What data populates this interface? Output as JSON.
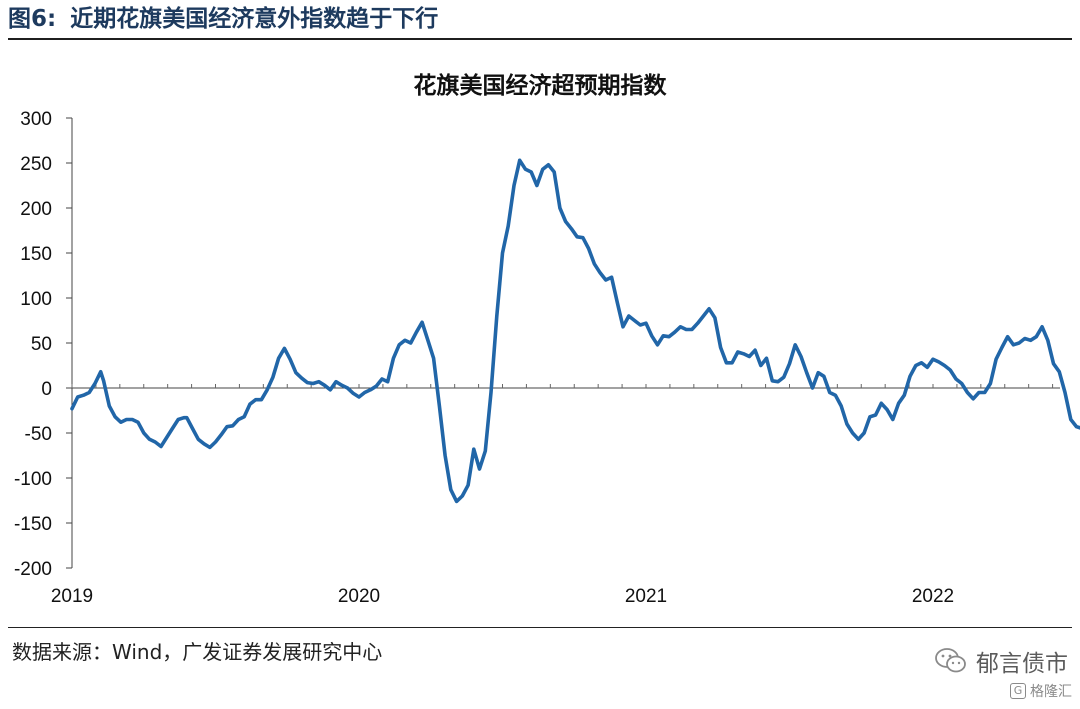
{
  "figure": {
    "label": "图6:",
    "title": "近期花旗美国经济意外指数趋于下行",
    "source": "数据来源：Wind，广发证券发展研究中心",
    "watermark": "郁言债市",
    "badge": "格隆汇"
  },
  "chart_data": {
    "type": "line",
    "title": "花旗美国经济超预期指数",
    "xlabel": "",
    "ylabel": "",
    "ylim": [
      -200,
      300
    ],
    "yticks": [
      300,
      250,
      200,
      150,
      100,
      50,
      0,
      -50,
      -100,
      -150,
      -200
    ],
    "xticks": [
      {
        "label": "2019",
        "value": 2019.0
      },
      {
        "label": "2020",
        "value": 2020.0
      },
      {
        "label": "2021",
        "value": 2021.0
      },
      {
        "label": "2022",
        "value": 2022.0
      }
    ],
    "xlim": [
      2019.0,
      2022.42
    ],
    "grid": false,
    "series": [
      {
        "color": "#2166a8",
        "points": [
          [
            2019.0,
            -23
          ],
          [
            2019.02,
            -10
          ],
          [
            2019.04,
            -8
          ],
          [
            2019.06,
            -5
          ],
          [
            2019.08,
            5
          ],
          [
            2019.1,
            18
          ],
          [
            2019.11,
            8
          ],
          [
            2019.13,
            -20
          ],
          [
            2019.15,
            -32
          ],
          [
            2019.17,
            -38
          ],
          [
            2019.19,
            -35
          ],
          [
            2019.21,
            -35
          ],
          [
            2019.23,
            -38
          ],
          [
            2019.25,
            -50
          ],
          [
            2019.27,
            -57
          ],
          [
            2019.29,
            -60
          ],
          [
            2019.31,
            -65
          ],
          [
            2019.33,
            -55
          ],
          [
            2019.35,
            -45
          ],
          [
            2019.37,
            -35
          ],
          [
            2019.39,
            -33
          ],
          [
            2019.4,
            -33
          ],
          [
            2019.42,
            -45
          ],
          [
            2019.44,
            -57
          ],
          [
            2019.46,
            -62
          ],
          [
            2019.48,
            -66
          ],
          [
            2019.5,
            -60
          ],
          [
            2019.52,
            -52
          ],
          [
            2019.54,
            -43
          ],
          [
            2019.56,
            -42
          ],
          [
            2019.58,
            -35
          ],
          [
            2019.6,
            -32
          ],
          [
            2019.62,
            -18
          ],
          [
            2019.64,
            -13
          ],
          [
            2019.66,
            -13
          ],
          [
            2019.68,
            -2
          ],
          [
            2019.7,
            12
          ],
          [
            2019.72,
            33
          ],
          [
            2019.74,
            44
          ],
          [
            2019.76,
            32
          ],
          [
            2019.78,
            17
          ],
          [
            2019.8,
            11
          ],
          [
            2019.82,
            6
          ],
          [
            2019.84,
            5
          ],
          [
            2019.86,
            7
          ],
          [
            2019.88,
            3
          ],
          [
            2019.9,
            -2
          ],
          [
            2019.92,
            7
          ],
          [
            2019.94,
            3
          ],
          [
            2019.96,
            0
          ],
          [
            2019.98,
            -6
          ],
          [
            2020.0,
            -10
          ],
          [
            2020.02,
            -5
          ],
          [
            2020.04,
            -2
          ],
          [
            2020.06,
            2
          ],
          [
            2020.08,
            10
          ],
          [
            2020.1,
            7
          ],
          [
            2020.12,
            33
          ],
          [
            2020.14,
            48
          ],
          [
            2020.16,
            53
          ],
          [
            2020.18,
            50
          ],
          [
            2020.2,
            62
          ],
          [
            2020.22,
            73
          ],
          [
            2020.24,
            53
          ],
          [
            2020.26,
            33
          ],
          [
            2020.28,
            -20
          ],
          [
            2020.3,
            -75
          ],
          [
            2020.32,
            -113
          ],
          [
            2020.34,
            -126
          ],
          [
            2020.36,
            -120
          ],
          [
            2020.38,
            -108
          ],
          [
            2020.4,
            -68
          ],
          [
            2020.42,
            -90
          ],
          [
            2020.44,
            -70
          ],
          [
            2020.46,
            -5
          ],
          [
            2020.48,
            80
          ],
          [
            2020.5,
            150
          ],
          [
            2020.52,
            180
          ],
          [
            2020.54,
            225
          ],
          [
            2020.56,
            253
          ],
          [
            2020.58,
            243
          ],
          [
            2020.6,
            240
          ],
          [
            2020.62,
            225
          ],
          [
            2020.64,
            243
          ],
          [
            2020.66,
            248
          ],
          [
            2020.68,
            240
          ],
          [
            2020.7,
            200
          ],
          [
            2020.72,
            185
          ],
          [
            2020.74,
            177
          ],
          [
            2020.76,
            168
          ],
          [
            2020.78,
            167
          ],
          [
            2020.8,
            155
          ],
          [
            2020.82,
            138
          ],
          [
            2020.84,
            128
          ],
          [
            2020.86,
            120
          ],
          [
            2020.88,
            123
          ],
          [
            2020.9,
            95
          ],
          [
            2020.92,
            68
          ],
          [
            2020.94,
            80
          ],
          [
            2020.96,
            75
          ],
          [
            2020.98,
            70
          ],
          [
            2021.0,
            72
          ],
          [
            2021.02,
            58
          ],
          [
            2021.04,
            48
          ],
          [
            2021.06,
            58
          ],
          [
            2021.08,
            57
          ],
          [
            2021.1,
            62
          ],
          [
            2021.12,
            68
          ],
          [
            2021.14,
            65
          ],
          [
            2021.16,
            65
          ],
          [
            2021.18,
            72
          ],
          [
            2021.2,
            80
          ],
          [
            2021.22,
            88
          ],
          [
            2021.24,
            78
          ],
          [
            2021.26,
            45
          ],
          [
            2021.28,
            28
          ],
          [
            2021.3,
            28
          ],
          [
            2021.32,
            40
          ],
          [
            2021.34,
            38
          ],
          [
            2021.36,
            35
          ],
          [
            2021.38,
            42
          ],
          [
            2021.4,
            25
          ],
          [
            2021.42,
            33
          ],
          [
            2021.44,
            8
          ],
          [
            2021.46,
            7
          ],
          [
            2021.48,
            12
          ],
          [
            2021.5,
            27
          ],
          [
            2021.52,
            48
          ],
          [
            2021.54,
            35
          ],
          [
            2021.56,
            17
          ],
          [
            2021.58,
            0
          ],
          [
            2021.6,
            17
          ],
          [
            2021.62,
            13
          ],
          [
            2021.64,
            -5
          ],
          [
            2021.66,
            -8
          ],
          [
            2021.68,
            -20
          ],
          [
            2021.7,
            -40
          ],
          [
            2021.72,
            -50
          ],
          [
            2021.74,
            -57
          ],
          [
            2021.76,
            -50
          ],
          [
            2021.78,
            -32
          ],
          [
            2021.8,
            -30
          ],
          [
            2021.82,
            -17
          ],
          [
            2021.84,
            -24
          ],
          [
            2021.86,
            -35
          ],
          [
            2021.88,
            -17
          ],
          [
            2021.9,
            -8
          ],
          [
            2021.92,
            13
          ],
          [
            2021.94,
            25
          ],
          [
            2021.96,
            28
          ],
          [
            2021.98,
            23
          ],
          [
            2022.0,
            32
          ],
          [
            2022.02,
            29
          ],
          [
            2022.04,
            25
          ],
          [
            2022.06,
            20
          ],
          [
            2022.08,
            10
          ],
          [
            2022.1,
            5
          ],
          [
            2022.12,
            -5
          ],
          [
            2022.14,
            -12
          ],
          [
            2022.16,
            -5
          ],
          [
            2022.18,
            -5
          ],
          [
            2022.2,
            5
          ],
          [
            2022.22,
            32
          ],
          [
            2022.24,
            45
          ],
          [
            2022.26,
            57
          ],
          [
            2022.28,
            48
          ],
          [
            2022.3,
            50
          ],
          [
            2022.32,
            55
          ],
          [
            2022.34,
            53
          ],
          [
            2022.36,
            57
          ],
          [
            2022.38,
            68
          ],
          [
            2022.4,
            53
          ],
          [
            2022.42,
            27
          ],
          [
            2022.44,
            18
          ],
          [
            2022.46,
            -5
          ],
          [
            2022.48,
            -35
          ],
          [
            2022.5,
            -43
          ],
          [
            2022.52,
            -45
          ]
        ]
      }
    ]
  }
}
